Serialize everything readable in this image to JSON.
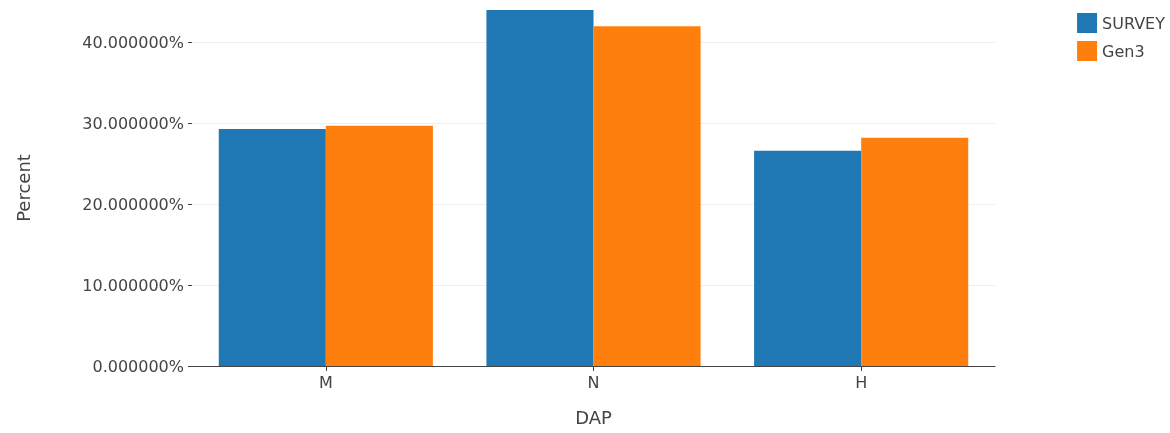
{
  "chart_data": {
    "type": "bar",
    "xlabel": "DAP",
    "ylabel": "Percent",
    "categories": [
      "M",
      "N",
      "H"
    ],
    "series": [
      {
        "name": "SURVEY",
        "color": "#1f77b4",
        "values": [
          29.3,
          44.0,
          26.6
        ]
      },
      {
        "name": "Gen3",
        "color": "#ff7f0e",
        "values": [
          29.7,
          42.0,
          28.2
        ]
      }
    ],
    "ylim": [
      0,
      44
    ],
    "yticks": [
      {
        "value": 0,
        "label": "0.000000%"
      },
      {
        "value": 10,
        "label": "10.000000%"
      },
      {
        "value": 20,
        "label": "20.000000%"
      },
      {
        "value": 30,
        "label": "30.000000%"
      },
      {
        "value": 40,
        "label": "40.000000%"
      }
    ],
    "grid": "y",
    "legend": "top right"
  }
}
